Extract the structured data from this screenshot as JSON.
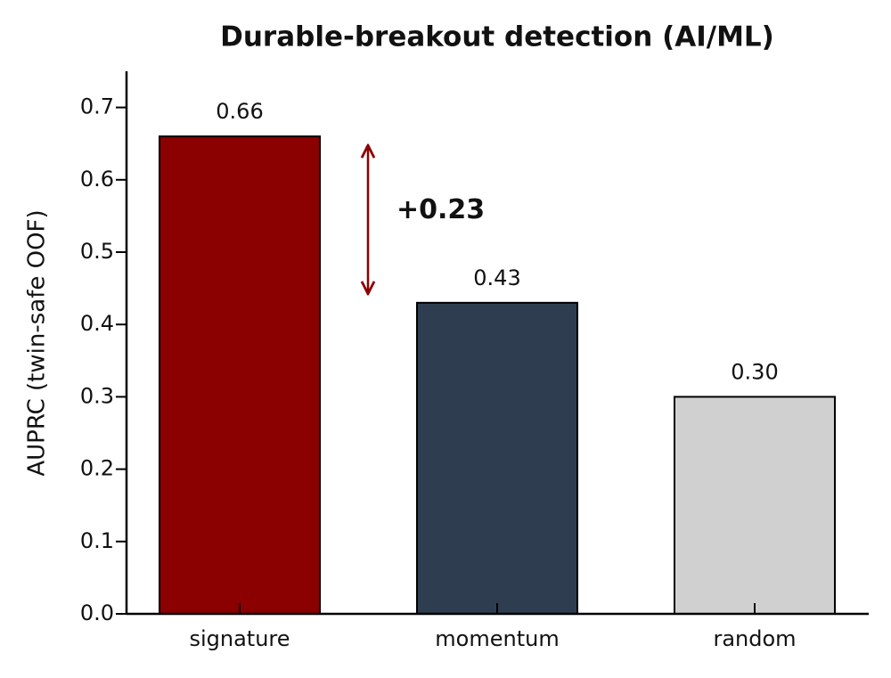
{
  "chart_data": {
    "type": "bar",
    "title": "Durable-breakout detection (AI/ML)",
    "y_label": "AUPRC (twin-safe OOF)",
    "categories": [
      "signature",
      "momentum",
      "random"
    ],
    "values": [
      0.66,
      0.43,
      0.3
    ],
    "value_labels": [
      "0.66",
      "0.43",
      "0.30"
    ],
    "colors": [
      "#8b0000",
      "#2e3e50",
      "#d0d0d0"
    ],
    "ylim": [
      0,
      0.75
    ],
    "yticks": [
      {
        "value": 0,
        "label": "0.0"
      },
      0.1,
      0.2,
      0.3,
      0.4,
      0.5,
      0.6,
      0.7
    ],
    "annotation": {
      "text": "+0.23",
      "color": "#8b0000"
    }
  }
}
